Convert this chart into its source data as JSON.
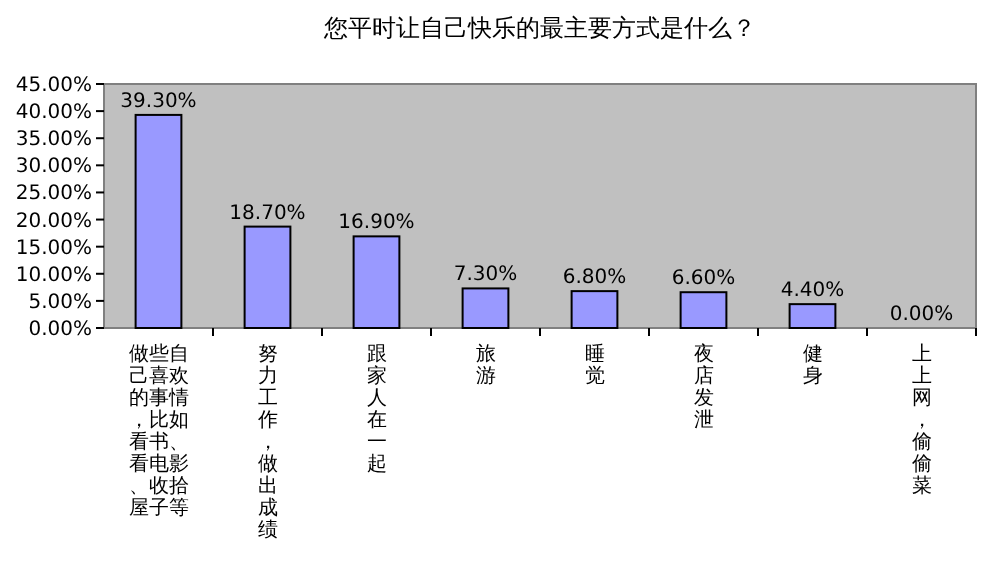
{
  "chart_data": {
    "type": "bar",
    "title": "您平时让自己快乐的最主要方式是什么？",
    "categories": [
      "做些自己喜欢的事情，比如看书、看电影、收拾屋子等",
      "努力工作，做出成绩",
      "跟家人在一起",
      "旅游",
      "睡觉",
      "夜店发泄",
      "健身",
      "上上网，偷偷菜"
    ],
    "values": [
      39.3,
      18.7,
      16.9,
      7.3,
      6.8,
      6.6,
      4.4,
      0
    ],
    "value_labels": [
      "39.30%",
      "18.70%",
      "16.90%",
      "7.30%",
      "6.80%",
      "6.60%",
      "4.40%",
      "0.00%"
    ],
    "color": "#9999ff",
    "ylim": [
      0,
      45
    ],
    "yticks": [
      {
        "value": 0,
        "label": "0.00%"
      },
      {
        "value": 5,
        "label": "5.00%"
      },
      {
        "value": 10,
        "label": "10.00%"
      },
      {
        "value": 15,
        "label": "15.00%"
      },
      {
        "value": 20,
        "label": "20.00%"
      },
      {
        "value": 25,
        "label": "25.00%"
      },
      {
        "value": 30,
        "label": "30.00%"
      },
      {
        "value": 35,
        "label": "35.00%"
      },
      {
        "value": 40,
        "label": "40.00%"
      },
      {
        "value": 45,
        "label": "45.00%"
      }
    ]
  }
}
